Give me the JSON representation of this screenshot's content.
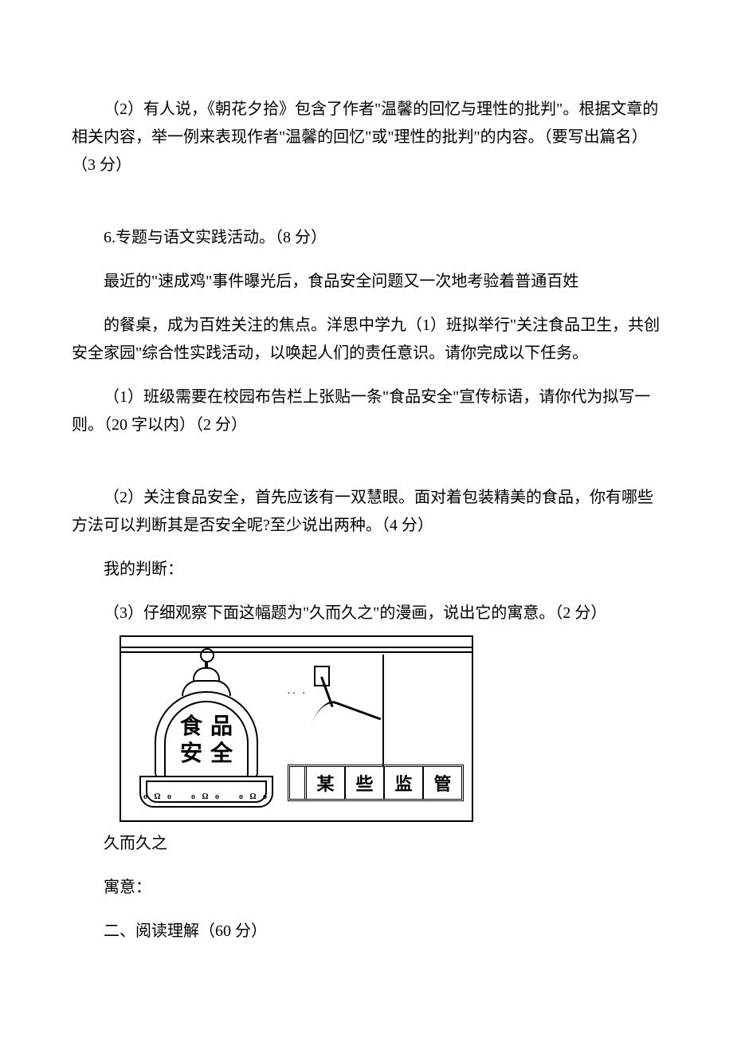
{
  "q5_2": "（2）有人说，《朝花夕拾》包含了作者\"温馨的回忆与理性的批判\"。根据文章的相关内容，举一例来表现作者\"温馨的回忆\"或\"理性的批判\"的内容。（要写出篇名）（3 分）",
  "q6_title": "6.专题与语文实践活动。（8 分）",
  "q6_intro1": "最近的\"速成鸡\"事件曝光后，食品安全问题又一次地考验着普通百姓",
  "q6_intro2": "的餐桌，成为百姓关注的焦点。洋思中学九（1）班拟举行\"关注食品卫生，共创安全家园\"综合性实践活动，以唤起人们的责任意识。请你完成以下任务。",
  "q6_1": "（1）班级需要在校园布告栏上张贴一条\"食品安全\"宣传标语，请你代为拟写一则。（20 字以内）（2 分）",
  "q6_2": "（2）关注食品安全，首先应该有一双慧眼。面对着包装精美的食品，你有哪些方法可以判断其是否安全呢?至少说出两种。（4 分）",
  "q6_2_answer_label": "我的判断：",
  "q6_3": "（3）仔细观察下面这幅题为\"久而久之\"的漫画，说出它的寓意。（2 分）",
  "figure": {
    "bell_line1": "食品",
    "bell_line2": "安全",
    "banner_cells": [
      "某",
      "些",
      "监",
      "管"
    ],
    "caption": "久而久之",
    "meaning_label": "寓意："
  },
  "section2": "二、阅读理解（60 分）"
}
